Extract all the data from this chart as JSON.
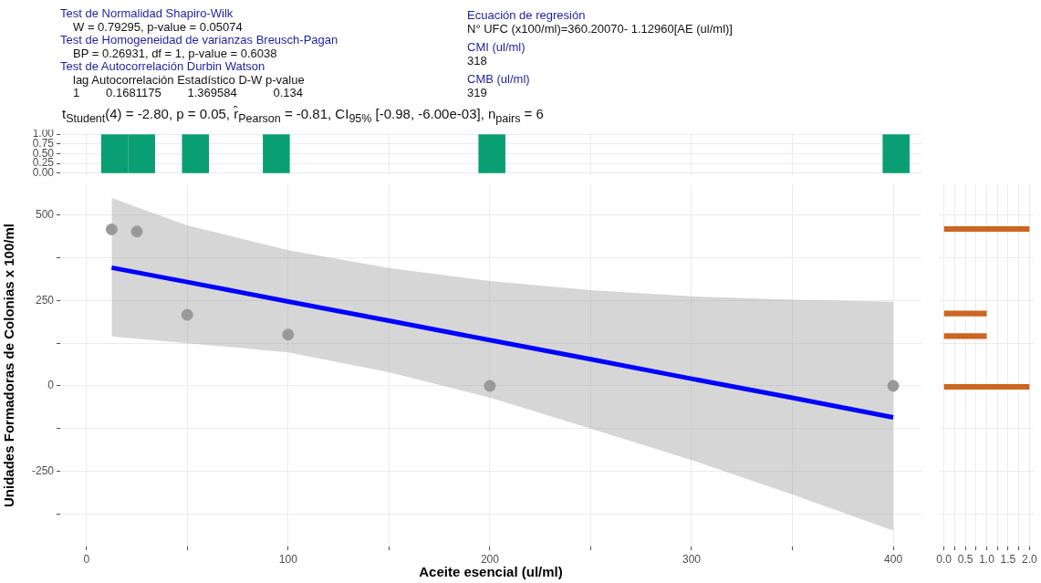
{
  "chart_data": [
    {
      "type": "scatter",
      "subtitle": "t$_{Student}$(4) = -2.80, p = 0.05, r̂$_{Pearson}$ = -0.81, CI$_{95%}$ [-0.98, -6.00e-03], n$_{pairs}$ = 6",
      "xlabel": "Aceite esencial (ul/ml)",
      "ylabel": "Unidades Formadoras de Colonias x 100/ml",
      "annotations": [
        "Test de Normalidad Shapiro-Wilk",
        "W = 0.79295, p-value = 0.05074",
        "Test de Homogeneidad de varianzas Breusch-Pagan",
        "BP = 0.26931, df = 1, p-value = 0.6038",
        "Test de Autocorrelación Durbin Watson",
        "lag Autocorrelación Estadístico D-W p-value",
        "1        0.1681175        1.369584           0.134",
        "Ecuación de regresión",
        "N° UFC (x100/ml)=360.20070- 1.12960[AE (ul/ml)]",
        "CMI (ul/ml)",
        "318",
        "CMB (ul/ml)",
        "319"
      ],
      "series": [
        {
          "type": "line",
          "color": "#0000ff",
          "x": [
            12.5,
            50,
            100,
            150,
            200,
            250,
            300,
            350,
            400
          ],
          "values": [
            346,
            304,
            247,
            191,
            134,
            78,
            21,
            -35,
            -92
          ],
          "lower": [
            145,
            125,
            98,
            40,
            -34,
            -125,
            -217,
            -318,
            -423
          ],
          "upper": [
            550,
            470,
            397,
            345,
            307,
            280,
            262,
            252,
            246
          ]
        },
        {
          "type": "scatter",
          "marker": "circle",
          "color": "#999999",
          "x": [
            12.5,
            25,
            50,
            100,
            200,
            400
          ],
          "values": [
            458,
            452,
            208,
            150,
            0,
            0
          ]
        }
      ],
      "xlim": [
        -13,
        414
      ],
      "xticks": [
        0,
        {
          "value": 50,
          "label": null
        },
        100,
        {
          "value": 150,
          "label": null
        },
        200,
        {
          "value": 250,
          "label": null
        },
        300,
        {
          "value": 350,
          "label": null
        },
        400
      ],
      "ylim": [
        -470,
        590
      ],
      "yticks": [
        {
          "value": -375,
          "label": null
        },
        -250,
        {
          "value": -125,
          "label": null
        },
        0,
        {
          "value": 125,
          "label": null
        },
        250,
        {
          "value": 375,
          "label": null
        },
        500
      ],
      "grid": true,
      "line_style": "solid"
    },
    {
      "type": "histogram",
      "color": "#0a9e73",
      "bins": [
        7.3,
        20.66,
        34.02,
        47.38,
        60.74,
        74.1,
        87.46,
        100.82,
        114.18,
        127.54,
        140.9,
        154.26,
        167.62,
        180.98,
        194.34,
        207.7,
        221.06,
        234.42,
        247.78,
        261.14,
        274.5,
        287.86,
        301.22,
        314.58,
        327.94,
        341.3,
        354.66,
        368.02,
        381.38,
        394.74,
        408.1
      ],
      "values": [
        1,
        1,
        0,
        1,
        0,
        0,
        1,
        0,
        0,
        0,
        0,
        0,
        0,
        0,
        1,
        0,
        0,
        0,
        0,
        0,
        0,
        0,
        0,
        0,
        0,
        0,
        0,
        0,
        0,
        1
      ],
      "xlim": [
        -13,
        414
      ],
      "xticks": [
        0,
        {
          "value": 50,
          "label": null
        },
        100,
        {
          "value": 150,
          "label": null
        },
        200,
        {
          "value": 250,
          "label": null
        },
        300,
        {
          "value": 350,
          "label": null
        },
        400
      ],
      "ylim": [
        -0.05,
        1.05
      ],
      "yticks": [
        {
          "value": 0,
          "label": "0.00"
        },
        {
          "value": 0.25,
          "label": "0.25"
        },
        {
          "value": 0.5,
          "label": "0.50"
        },
        {
          "value": 0.75,
          "label": "0.75"
        },
        {
          "value": 1,
          "label": "1.00"
        }
      ],
      "grid": true,
      "tick_labels": "y"
    },
    {
      "type": "histogram",
      "orientation": "horizontal",
      "color": "#cc6622",
      "bins": [
        -11,
        5.5,
        22,
        38.5,
        55,
        71.5,
        88,
        104.5,
        121,
        137.5,
        154,
        170.5,
        187,
        203.5,
        220,
        236.5,
        253,
        269.5,
        286,
        302.5,
        319,
        335.5,
        352,
        368.5,
        385,
        401.5,
        418,
        434.5,
        451,
        467.5
      ],
      "values": [
        2,
        0,
        0,
        0,
        0,
        0,
        0,
        0,
        0,
        1,
        0,
        0,
        0,
        1,
        0,
        0,
        0,
        0,
        0,
        0,
        0,
        0,
        0,
        0,
        0,
        0,
        0,
        0,
        2
      ],
      "xlim": [
        -0.1,
        2.1
      ],
      "xticks": [
        {
          "value": 0,
          "label": "0.0"
        },
        {
          "value": 0.25,
          "label": null
        },
        {
          "value": 0.5,
          "label": "0.5"
        },
        {
          "value": 0.75,
          "label": null
        },
        {
          "value": 1,
          "label": "1.0"
        },
        {
          "value": 1.25,
          "label": null
        },
        {
          "value": 1.5,
          "label": "1.5"
        },
        {
          "value": 1.75,
          "label": null
        },
        {
          "value": 2,
          "label": "2.0"
        }
      ],
      "ylim": [
        -470,
        590
      ],
      "yticks": [
        {
          "value": -375,
          "label": null
        },
        -250,
        {
          "value": -125,
          "label": null
        },
        0,
        {
          "value": 125,
          "label": null
        },
        250,
        {
          "value": 375,
          "label": null
        },
        500
      ],
      "grid": true,
      "tick_labels": "x"
    }
  ]
}
